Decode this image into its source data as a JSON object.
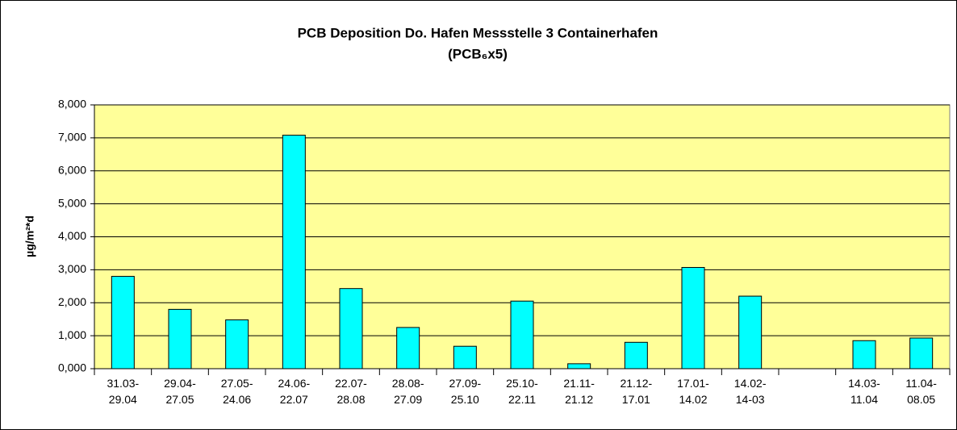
{
  "chart_data": {
    "type": "bar",
    "title": "PCB Deposition Do. Hafen Messstelle 3 Containerhafen",
    "subtitle": "(PCB₆x5)",
    "y_label": "µg/m²*d",
    "categories": [
      "31.03-\n29.04",
      "29.04-\n27.05",
      "27.05-\n24.06",
      "24.06-\n22.07",
      "22.07-\n28.08",
      "28.08-\n27.09",
      "27.09-\n25.10",
      "25.10-\n22.11",
      "21.11-\n21.12",
      "21.12-\n17.01",
      "17.01-\n14.02",
      "14.02-\n14-03",
      null,
      "14.03-\n11.04",
      "11.04-\n08.05"
    ],
    "values": [
      2.8,
      1.8,
      1.48,
      7.08,
      2.43,
      1.25,
      0.68,
      2.05,
      0.15,
      0.8,
      3.07,
      2.2,
      null,
      0.85,
      0.93
    ],
    "color": "#00ffff",
    "plot_background": "#ffff99",
    "ylim": [
      0,
      8
    ],
    "yticks": [
      {
        "value": 0,
        "label": "0,000"
      },
      {
        "value": 1,
        "label": "1,000"
      },
      {
        "value": 2,
        "label": "2,000"
      },
      {
        "value": 3,
        "label": "3,000"
      },
      {
        "value": 4,
        "label": "4,000"
      },
      {
        "value": 5,
        "label": "5,000"
      },
      {
        "value": 6,
        "label": "6,000"
      },
      {
        "value": 7,
        "label": "7,000"
      },
      {
        "value": 8,
        "label": "8,000"
      }
    ],
    "grid": true
  }
}
